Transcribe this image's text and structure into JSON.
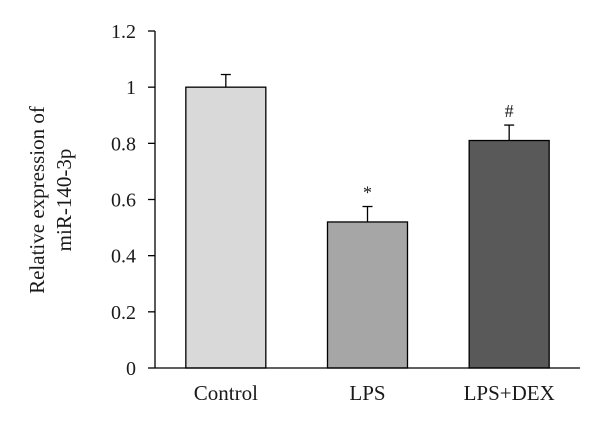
{
  "chart_data": {
    "type": "bar",
    "title": "",
    "xlabel": "",
    "ylabel_lines": [
      "Relative expression of",
      "miR-140-3p"
    ],
    "ylim": [
      0,
      1.2
    ],
    "yticks": [
      "0",
      "0.2",
      "0.4",
      "0.6",
      "0.8",
      "1",
      "1.2"
    ],
    "categories": [
      "Control",
      "LPS",
      "LPS+DEX"
    ],
    "values": [
      1.0,
      0.52,
      0.81
    ],
    "errors": [
      0.045,
      0.055,
      0.055
    ],
    "annotations": [
      "",
      "*",
      "#"
    ],
    "bar_colors": [
      "#d9d9d9",
      "#a6a6a6",
      "#595959"
    ],
    "grid": false,
    "legend": "none"
  }
}
